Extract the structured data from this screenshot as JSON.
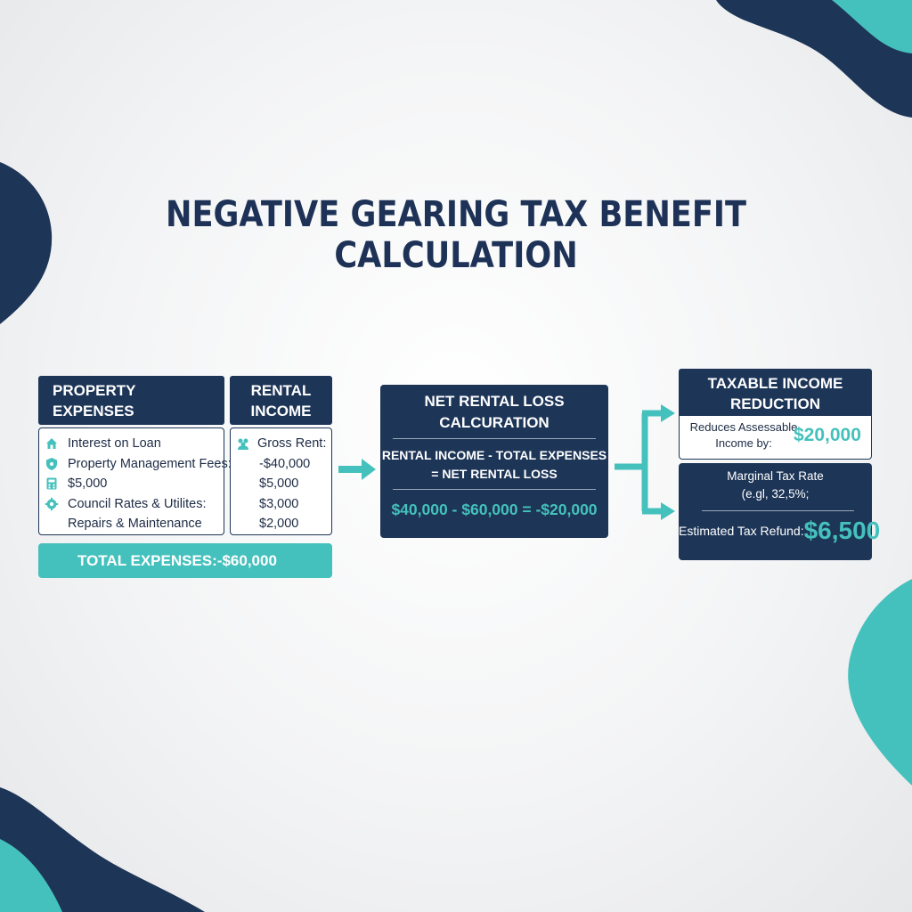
{
  "title": "NEGATIVE GEARING TAX BENEFIT CALCULATION",
  "colors": {
    "navy": "#1d3557",
    "teal": "#45c1bd",
    "background": "#f3f4f5"
  },
  "property_expenses": {
    "header_line1": "PROPERTY",
    "header_line2": "EXPENSES",
    "rows": [
      {
        "icon": "house-icon",
        "text": "Interest on Loan"
      },
      {
        "icon": "shield-icon",
        "text": "Property Management Fees:"
      },
      {
        "icon": "calculator-icon",
        "text": "$5,000"
      },
      {
        "icon": "gear-icon",
        "text": "Council Rates & Utilites:"
      },
      {
        "icon": "",
        "text": "Repairs & Maintenance"
      }
    ]
  },
  "rental_income": {
    "header_line1": "RENTAL",
    "header_line2": "INCOME",
    "rows": [
      {
        "icon": "people-icon",
        "text": "Gross Rent:"
      },
      {
        "icon": "",
        "text": "-$40,000"
      },
      {
        "icon": "",
        "text": "$5,000"
      },
      {
        "icon": "",
        "text": "$3,000"
      },
      {
        "icon": "",
        "text": "$2,000"
      }
    ]
  },
  "total_expenses": "TOTAL EXPENSES:-$60,000",
  "net_rental_loss": {
    "title_line1": "NET RENTAL LOSS",
    "title_line2": "CALCURATION",
    "formula_line1": "RENTAL INCOME - TOTAL EXPENSES",
    "formula_line2": "= NET RENTAL LOSS",
    "result": "$40,000 - $60,000 = -$20,000"
  },
  "taxable_income": {
    "title_line1": "TAXABLE INCOME",
    "title_line2": "REDUCTION",
    "label_line1": "Reduces Assessable",
    "label_line2": "Income by:",
    "amount": "$20,000"
  },
  "marginal_tax": {
    "title_line1": "Marginal Tax Rate",
    "title_line2": "(e.gl, 32,5%;",
    "refund_label": "Estimated Tax Refund:",
    "refund_amount": "$6,500"
  }
}
